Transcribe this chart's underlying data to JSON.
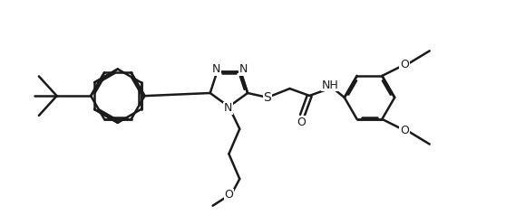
{
  "background_color": "#ffffff",
  "line_color": "#1a1a1a",
  "line_width": 1.8,
  "font_size": 9,
  "figsize": [
    5.69,
    2.38
  ],
  "dpi": 100,
  "xlim": [
    0,
    5.69
  ],
  "ylim": [
    0,
    2.38
  ]
}
